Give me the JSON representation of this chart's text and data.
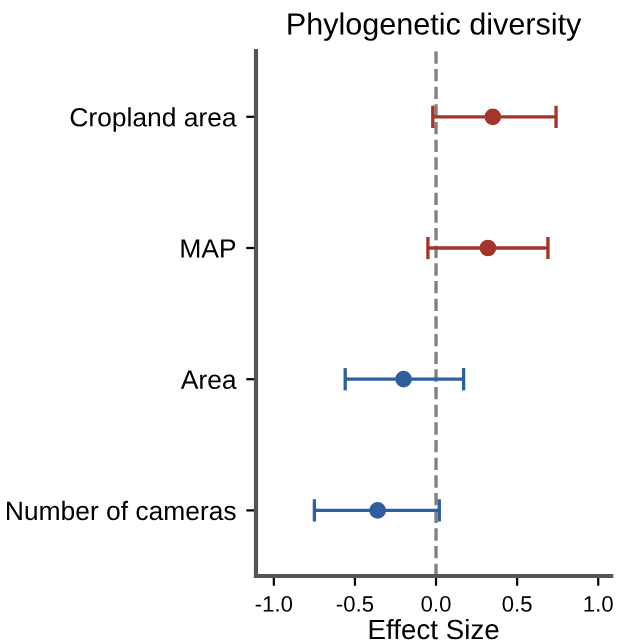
{
  "chart_data": {
    "type": "scatter",
    "orientation": "horizontal",
    "title": "Phylogenetic diversity",
    "xlabel": "Effect Size",
    "categories": [
      "Cropland area",
      "MAP",
      "Area",
      "Number of cameras"
    ],
    "values": [
      0.35,
      0.32,
      -0.2,
      -0.36
    ],
    "errors": [
      [
        -0.02,
        0.74
      ],
      [
        -0.05,
        0.69
      ],
      [
        -0.56,
        0.17
      ],
      [
        -0.75,
        0.02
      ]
    ],
    "colors": [
      "#a3352b",
      "#a3352b",
      "#2f5f9e",
      "#2f5f9e"
    ],
    "marker": "circle",
    "grid": false,
    "xlim": [
      -1.11,
      1.08
    ],
    "xticks": [
      {
        "value": -1.0,
        "label": "-1.0"
      },
      {
        "value": -0.5,
        "label": "-0.5"
      },
      {
        "value": 0.0,
        "label": "0.0"
      },
      {
        "value": 0.5,
        "label": "0.5"
      },
      {
        "value": 1.0,
        "label": "1.0"
      }
    ],
    "ref_lines": [
      {
        "axis": "x",
        "value": 0,
        "color": "#808080",
        "line_style": "dashed"
      }
    ]
  }
}
